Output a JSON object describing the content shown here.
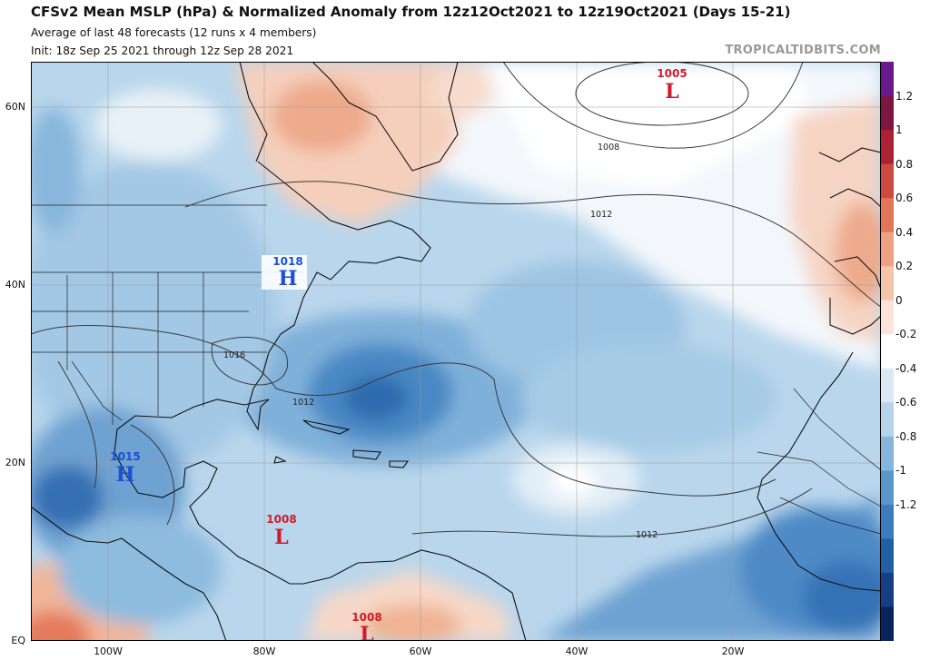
{
  "header": {
    "title": "CFSv2 Mean MSLP (hPa) & Normalized Anomaly from 12z12Oct2021 to 12z19Oct2021 (Days 15-21)",
    "subtitle1": "Average of last 48 forecasts (12 runs x 4 members)",
    "subtitle2": "Init: 18z Sep 25 2021 through 12z Sep 28 2021",
    "credit": "TROPICALTIDBITS.COM"
  },
  "map": {
    "lat_labels": [
      "60N",
      "40N",
      "20N",
      "EQ"
    ],
    "lon_labels": [
      "100W",
      "80W",
      "60W",
      "40W",
      "20W"
    ],
    "pressure_centers": [
      {
        "type": "L",
        "value": "1005",
        "color": "#d01c2a"
      },
      {
        "type": "H",
        "value": "1018",
        "color": "#1b4fd6"
      },
      {
        "type": "H",
        "value": "1015",
        "color": "#1b4fd6"
      },
      {
        "type": "L",
        "value": "1008",
        "color": "#d01c2a"
      },
      {
        "type": "L",
        "value": "1008",
        "color": "#d01c2a"
      }
    ],
    "isobar_labels": [
      "1008",
      "1012",
      "1016",
      "1012",
      "1012"
    ]
  },
  "colorbar": {
    "ticks": [
      "1.2",
      "1",
      "0.8",
      "0.6",
      "0.4",
      "0.2",
      "0",
      "-0.2",
      "-0.4",
      "-0.6",
      "-0.8",
      "-1",
      "-1.2"
    ],
    "colors": [
      "#08245a",
      "#163e84",
      "#2160a4",
      "#3b7cbc",
      "#5a98cc",
      "#86b6db",
      "#b5d3ea",
      "#dce9f4",
      "#ffffff",
      "#fbe3d9",
      "#f4c4ac",
      "#eea283",
      "#e2765b",
      "#cc4a3f",
      "#aa2233",
      "#7e1642",
      "#6a1a8c"
    ]
  }
}
